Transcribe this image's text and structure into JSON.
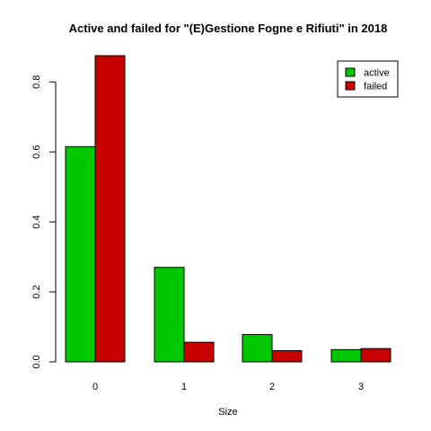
{
  "chart_data": {
    "type": "bar",
    "title": "Active and failed for \"(E)Gestione Fogne e Rifiuti\" in 2018",
    "xlabel": "Size",
    "ylabel": "",
    "categories": [
      "0",
      "1",
      "2",
      "3"
    ],
    "series": [
      {
        "name": "active",
        "color": "#00c800",
        "values": [
          0.615,
          0.27,
          0.078,
          0.035
        ]
      },
      {
        "name": "failed",
        "color": "#c80000",
        "values": [
          0.875,
          0.056,
          0.032,
          0.038
        ]
      }
    ],
    "yticks": [
      "0.0",
      "0.2",
      "0.4",
      "0.6",
      "0.8"
    ],
    "ylim": [
      0,
      0.875
    ],
    "legend_position": "top-right",
    "grid": false
  }
}
